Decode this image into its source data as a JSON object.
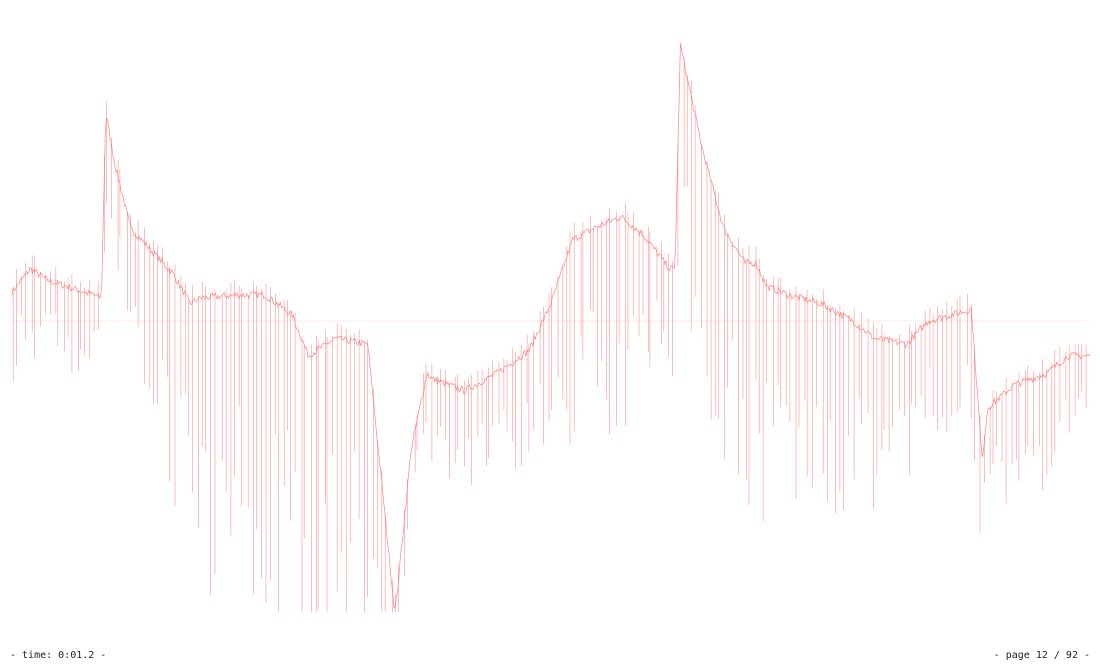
{
  "colors": {
    "trace": "#ff6f6f",
    "baseline": "#fde2e2",
    "background": "#ffffff",
    "text": "#222222"
  },
  "footer": {
    "time_text": "- time: 0:01.2 -",
    "page_text": "- page 12 / 92 -"
  },
  "chart_data": {
    "type": "line",
    "title": "",
    "xlabel": "",
    "ylabel": "",
    "xlim": [
      0,
      1
    ],
    "ylim": [
      -1,
      1
    ],
    "grid": false,
    "baseline": 0,
    "series": [
      {
        "envelope": {
          "x": [
            0.0,
            0.017,
            0.033,
            0.05,
            0.067,
            0.083,
            0.087,
            0.095,
            0.11,
            0.13,
            0.15,
            0.165,
            0.175,
            0.21,
            0.235,
            0.26,
            0.275,
            0.3,
            0.33,
            0.355,
            0.357,
            0.37,
            0.385,
            0.39,
            0.42,
            0.45,
            0.48,
            0.5,
            0.52,
            0.54,
            0.565,
            0.585,
            0.61,
            0.615,
            0.62,
            0.64,
            0.66,
            0.68,
            0.69,
            0.7,
            0.72,
            0.75,
            0.78,
            0.8,
            0.83,
            0.85,
            0.89,
            0.9,
            0.905,
            0.93,
            0.96,
            0.98,
            1.0
          ],
          "y": [
            0.1,
            0.18,
            0.14,
            0.12,
            0.1,
            0.08,
            0.72,
            0.55,
            0.32,
            0.24,
            0.16,
            0.06,
            0.08,
            0.09,
            0.09,
            0.02,
            -0.12,
            -0.06,
            -0.08,
            -1.0,
            -0.95,
            -0.45,
            -0.18,
            -0.2,
            -0.24,
            -0.18,
            -0.1,
            0.06,
            0.28,
            0.32,
            0.36,
            0.3,
            0.18,
            0.18,
            0.95,
            0.6,
            0.32,
            0.2,
            0.2,
            0.12,
            0.09,
            0.06,
            0.0,
            -0.06,
            -0.08,
            0.0,
            0.04,
            -0.48,
            -0.3,
            -0.22,
            -0.18,
            -0.12,
            -0.12
          ],
          "spike_depth": [
            0.35,
            0.35,
            0.28,
            0.3,
            0.3,
            0.3,
            0.4,
            0.4,
            0.45,
            0.6,
            0.85,
            1.0,
            1.05,
            1.1,
            1.1,
            1.1,
            1.1,
            1.05,
            1.0,
            0.4,
            0.3,
            0.2,
            0.3,
            0.3,
            0.35,
            0.4,
            0.4,
            0.55,
            0.75,
            0.75,
            0.75,
            0.55,
            0.4,
            0.4,
            0.8,
            0.85,
            0.85,
            0.85,
            0.85,
            0.85,
            0.85,
            0.85,
            0.7,
            0.6,
            0.5,
            0.45,
            0.4,
            0.35,
            0.4,
            0.45,
            0.4,
            0.3,
            0.2
          ]
        }
      }
    ]
  }
}
